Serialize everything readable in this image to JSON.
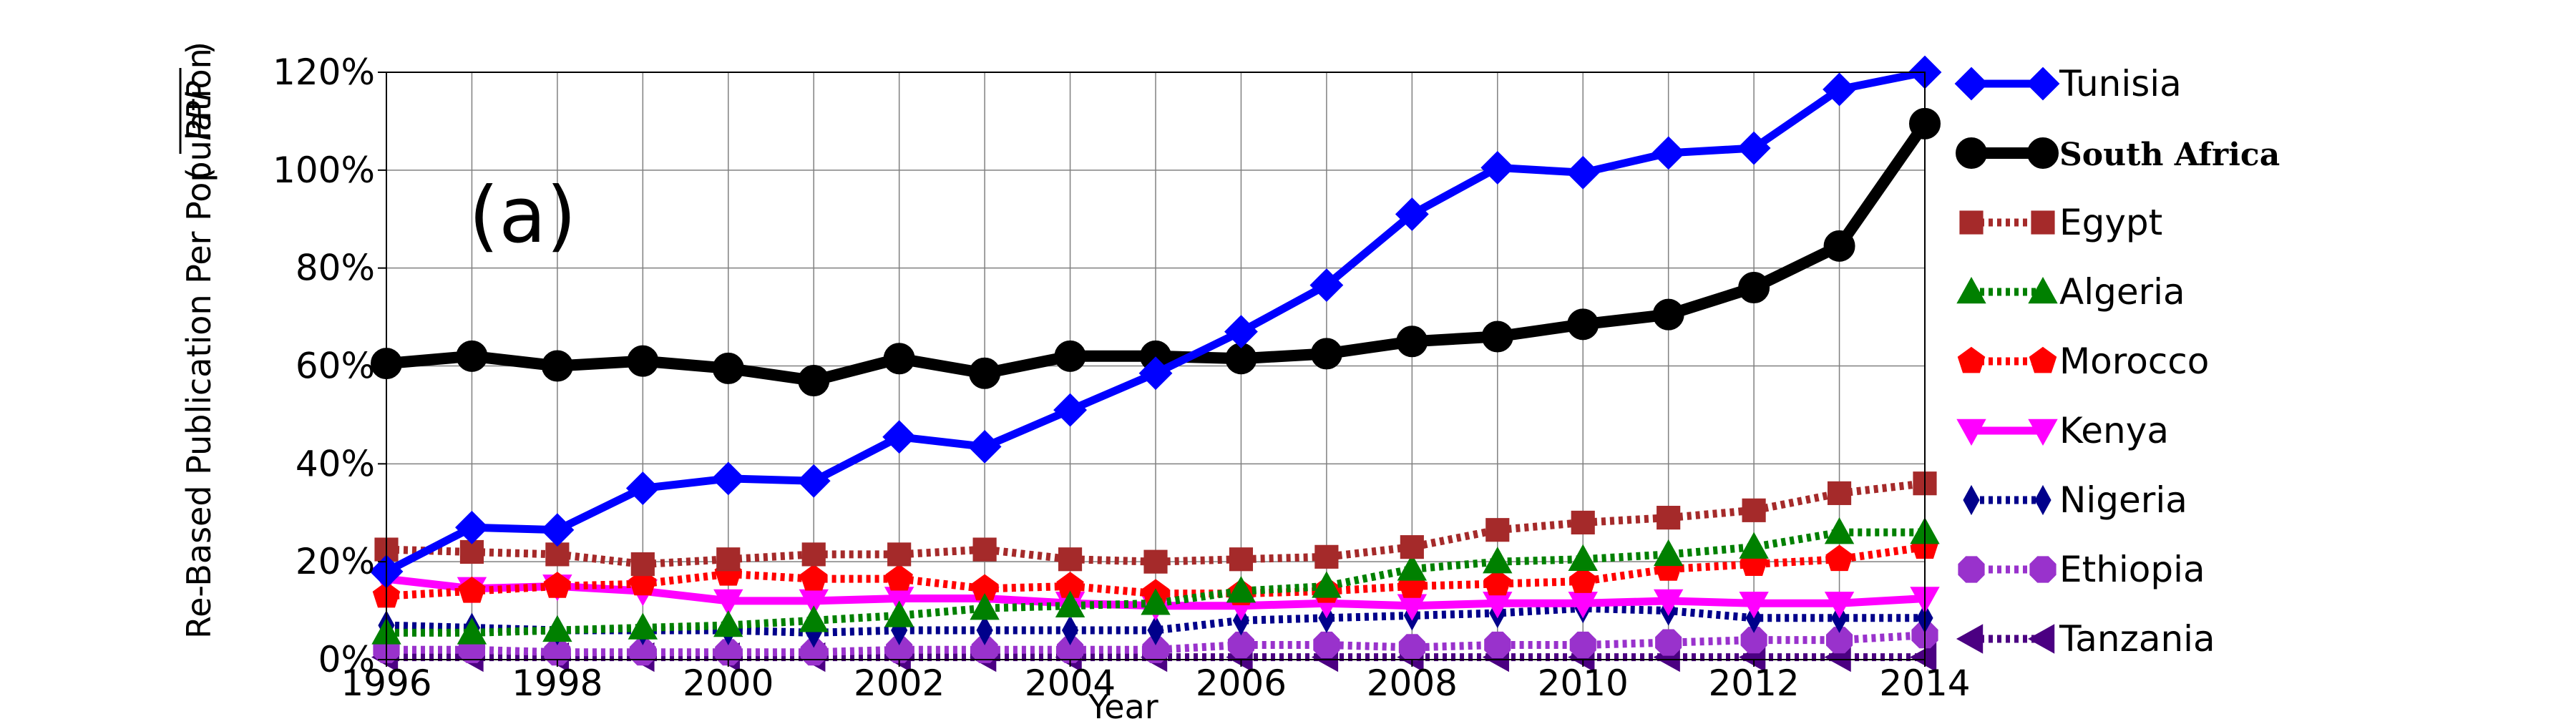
{
  "chart_data": {
    "type": "line",
    "panel_label": "(a)",
    "xlabel": "Year",
    "ylabel": "Re-Based Publication Per Population",
    "ylabel_symbol": "PPP",
    "x": [
      1996,
      1997,
      1998,
      1999,
      2000,
      2001,
      2002,
      2003,
      2004,
      2005,
      2006,
      2007,
      2008,
      2009,
      2010,
      2011,
      2012,
      2013,
      2014
    ],
    "xlim": [
      1996,
      2014
    ],
    "ylim": [
      0,
      120
    ],
    "xticks": [
      "1996",
      "1998",
      "2000",
      "2002",
      "2004",
      "2006",
      "2008",
      "2010",
      "2012",
      "2014"
    ],
    "yticks": [
      "0%",
      "20%",
      "40%",
      "60%",
      "80%",
      "100%",
      "120%"
    ],
    "grid": true,
    "legend_position": "right-outside",
    "series": [
      {
        "name": "Tunisia",
        "color": "#0000ff",
        "marker": "diamond",
        "dash": "solid",
        "values": [
          18,
          27,
          26.5,
          35,
          37,
          36.5,
          45.5,
          43.5,
          51,
          58.5,
          67,
          76.5,
          91,
          100.5,
          99.5,
          103.5,
          104.5,
          116.5,
          120
        ]
      },
      {
        "name": "South Africa",
        "color": "#000000",
        "marker": "circle",
        "dash": "solid",
        "values": [
          60.5,
          62,
          60,
          61,
          59.5,
          57,
          61.5,
          58.5,
          62,
          62,
          61.5,
          62.5,
          65,
          66,
          68.5,
          70.5,
          76,
          84.5,
          109.5
        ]
      },
      {
        "name": "Egypt",
        "color": "#a52a2a",
        "marker": "square",
        "dash": "dotted",
        "values": [
          22.5,
          22,
          21.5,
          19.5,
          20.5,
          21.5,
          21.5,
          22.5,
          20.5,
          20,
          20.5,
          21,
          23,
          26.5,
          28,
          29,
          30.5,
          34,
          36
        ]
      },
      {
        "name": "Algeria",
        "color": "#008000",
        "marker": "triangle-up",
        "dash": "dotted",
        "values": [
          5.5,
          5.5,
          6,
          6.5,
          7,
          8,
          9,
          10.5,
          11,
          11.5,
          14,
          15,
          18.5,
          20,
          20.5,
          21.5,
          23,
          26,
          26
        ]
      },
      {
        "name": "Morocco",
        "color": "#ff0000",
        "marker": "pentagon",
        "dash": "dotted",
        "values": [
          13,
          14,
          15,
          15.5,
          17.5,
          16.5,
          16.5,
          14.5,
          15,
          13.5,
          13.5,
          14,
          15,
          15.5,
          16,
          18.5,
          19.5,
          20.5,
          23
        ]
      },
      {
        "name": "Kenya",
        "color": "#ff00ff",
        "marker": "triangle-down",
        "dash": "solid",
        "values": [
          16.5,
          14.5,
          15,
          14,
          12,
          12,
          12.5,
          12.5,
          11.5,
          11,
          11,
          11.5,
          11,
          11.5,
          11.5,
          12,
          11.5,
          11.5,
          12.5
        ]
      },
      {
        "name": "Nigeria",
        "color": "#00008b",
        "marker": "thin-diamond",
        "dash": "dotted",
        "values": [
          7,
          6.5,
          6,
          6,
          6,
          5.5,
          6,
          6,
          6,
          6,
          8,
          8.5,
          9,
          9.5,
          10.5,
          10,
          8.5,
          8.5,
          8.5
        ]
      },
      {
        "name": "Ethiopia",
        "color": "#9932cc",
        "marker": "octagon",
        "dash": "dotted",
        "values": [
          2,
          2,
          1.5,
          1.5,
          1.5,
          1.5,
          2,
          2,
          2,
          2,
          3,
          3,
          2.5,
          3,
          3,
          3.5,
          4,
          4,
          5
        ]
      },
      {
        "name": "Tanzania",
        "color": "#4b0082",
        "marker": "triangle-left",
        "dash": "dotted",
        "values": [
          0.5,
          0.5,
          0.5,
          0.5,
          0.5,
          0.5,
          0.5,
          0.5,
          0.5,
          0.5,
          0.5,
          0.5,
          0.5,
          0.5,
          0.5,
          0.5,
          0.5,
          0.5,
          0.5
        ]
      }
    ]
  }
}
